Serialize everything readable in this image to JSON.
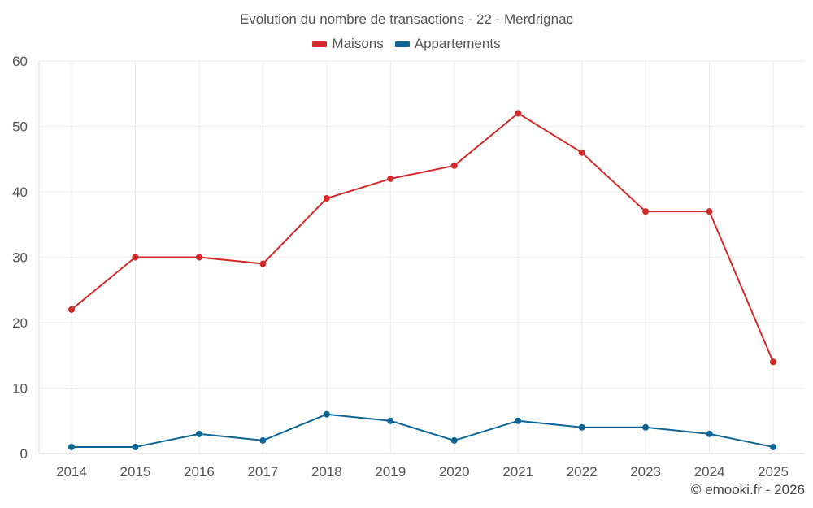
{
  "chart_data": {
    "type": "line",
    "title": "Evolution du nombre de transactions - 22 - Merdrignac",
    "categories": [
      "2014",
      "2015",
      "2016",
      "2017",
      "2018",
      "2019",
      "2020",
      "2021",
      "2022",
      "2023",
      "2024",
      "2025"
    ],
    "series": [
      {
        "name": "Maisons",
        "color": "#d42a2a",
        "values": [
          22,
          30,
          30,
          29,
          39,
          42,
          44,
          52,
          46,
          37,
          37,
          14
        ]
      },
      {
        "name": "Appartements",
        "color": "#0d6695",
        "values": [
          1,
          1,
          3,
          2,
          6,
          5,
          2,
          5,
          4,
          4,
          3,
          1
        ]
      }
    ],
    "ylim": [
      0,
      60
    ],
    "yticks": [
      0,
      10,
      20,
      30,
      40,
      50,
      60
    ],
    "grid": true,
    "legend": "top-center",
    "xlabel": "",
    "ylabel": ""
  },
  "credit": "© emooki.fr - 2026"
}
